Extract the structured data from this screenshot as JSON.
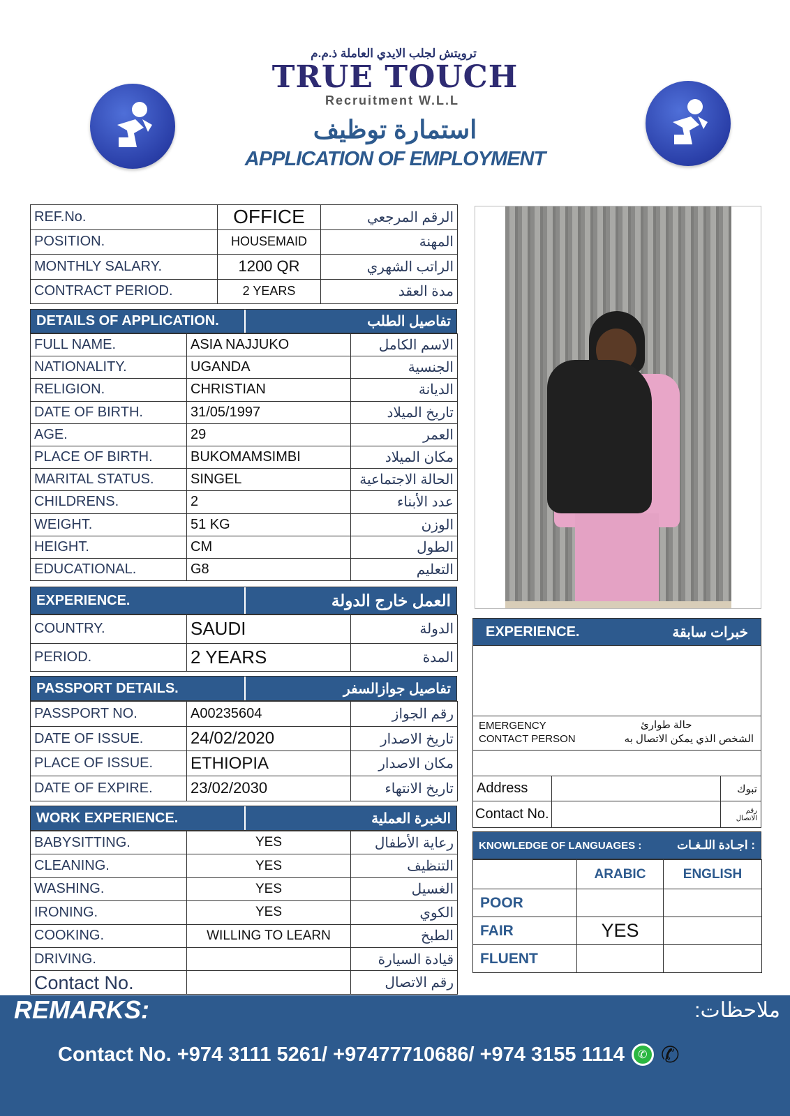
{
  "header": {
    "company_ar": "ترويتش لجلب الايدي العاملة ذ.م.م",
    "company": "TRUE TOUCH",
    "company_sub": "Recruitment W.L.L",
    "title_ar": "استمارة توظيف",
    "title": "APPLICATION OF EMPLOYMENT",
    "logo_icon": "recruitment-logo-icon"
  },
  "colors": {
    "accent": "#2d5a8e",
    "text": "#2a3a5c"
  },
  "top": [
    {
      "label": "REF.No.",
      "value": "OFFICE",
      "ar": "الرقم المرجعي"
    },
    {
      "label": "POSITION.",
      "value": "HOUSEMAID",
      "ar": "المهنة"
    },
    {
      "label": "MONTHLY SALARY.",
      "value": "1200 QR",
      "ar": "الراتب الشهري"
    },
    {
      "label": "CONTRACT PERIOD.",
      "value": "2 YEARS",
      "ar": "مدة العقد"
    }
  ],
  "details": {
    "title": "DETAILS OF APPLICATION.",
    "title_ar": "تفاصيل الطلب",
    "rows": [
      {
        "label": "FULL NAME.",
        "value": "ASIA  NAJJUKO",
        "ar": "الاسم الكامل"
      },
      {
        "label": "NATIONALITY.",
        "value": "UGANDA",
        "ar": "الجنسية"
      },
      {
        "label": "RELIGION.",
        "value": "CHRISTIAN",
        "ar": "الديانة"
      },
      {
        "label": "DATE OF BIRTH.",
        "value": "31/05/1997",
        "ar": "تاريخ الميلاد"
      },
      {
        "label": "AGE.",
        "value": "29",
        "ar": "العمر"
      },
      {
        "label": "PLACE OF BIRTH.",
        "value": "BUKOMAMSIMBI",
        "ar": "مكان الميلاد"
      },
      {
        "label": "MARITAL STATUS.",
        "value": "SINGEL",
        "ar": "الحالة الاجتماعية"
      },
      {
        "label": "CHILDRENS.",
        "value": "2",
        "ar": "عدد الأبناء"
      },
      {
        "label": "WEIGHT.",
        "value": "51 KG",
        "ar": "الوزن"
      },
      {
        "label": "HEIGHT.",
        "value": "CM",
        "ar": "الطول"
      },
      {
        "label": "EDUCATIONAL.",
        "value": "G8",
        "ar": "التعليم"
      }
    ]
  },
  "experience_abroad": {
    "title": "EXPERIENCE.",
    "title_ar": "العمل خارج الدولة",
    "rows": [
      {
        "label": "COUNTRY.",
        "value": "SAUDI",
        "ar": "الدولة"
      },
      {
        "label": "PERIOD.",
        "value": "2 YEARS",
        "ar": "المدة"
      }
    ]
  },
  "passport": {
    "title": "PASSPORT DETAILS.",
    "title_ar": "تفاصيل جوازالسفر",
    "rows": [
      {
        "label": "PASSPORT NO.",
        "value": "A00235604",
        "ar": "رقم الجواز"
      },
      {
        "label": "DATE OF ISSUE.",
        "value": "24/02/2020",
        "ar": "تاريخ الاصدار"
      },
      {
        "label": "PLACE OF ISSUE.",
        "value": "ETHIOPIA",
        "ar": "مكان الاصدار"
      },
      {
        "label": "DATE OF EXPIRE.",
        "value": "23/02/2030",
        "ar": "تاريخ الانتهاء"
      }
    ]
  },
  "work": {
    "title": "WORK EXPERIENCE.",
    "title_ar": "الخبرة العملية",
    "rows": [
      {
        "label": "BABYSITTING.",
        "value": "YES",
        "ar": "رعاية الأطفال"
      },
      {
        "label": "CLEANING.",
        "value": "YES",
        "ar": "التنظيف"
      },
      {
        "label": "WASHING.",
        "value": "YES",
        "ar": "الغسيل"
      },
      {
        "label": "IRONING.",
        "value": "YES",
        "ar": "الكوي"
      },
      {
        "label": "COOKING.",
        "value": "WILLING TO LEARN",
        "ar": "الطبخ"
      },
      {
        "label": "DRIVING.",
        "value": "",
        "ar": "قيادة السيارة"
      },
      {
        "label": "Contact No.",
        "value": "",
        "ar": "رقم الاتصال"
      }
    ]
  },
  "right": {
    "exp_title": "EXPERIENCE.",
    "exp_title_ar": "خبرات سابقة",
    "emergency": "EMERGENCY",
    "contact_person": "CONTACT PERSON",
    "emergency_ar": "حالة طوارئ",
    "contact_person_ar": "الشخص الذي يمكن الاتصال به",
    "address": "Address",
    "address_ar": "تبوك",
    "contact": "Contact No.",
    "contact_ar": "رقم الاتصال",
    "lang_title": "KNOWLEDGE OF LANGUAGES :",
    "lang_title_ar": "اجـادة اللـغـات :",
    "lang_cols": [
      "ARABIC",
      "ENGLISH"
    ],
    "lang_rows": [
      {
        "level": "POOR",
        "arabic": "",
        "english": ""
      },
      {
        "level": "FAIR",
        "arabic": "YES",
        "english": ""
      },
      {
        "level": "FLUENT",
        "arabic": "",
        "english": ""
      }
    ]
  },
  "footer": {
    "remarks": "REMARKS:",
    "remarks_ar": "ملاحظات:",
    "contact": "Contact No. +974 3111 5261/ +97477710686/  +974 3155 1114",
    "icons": [
      "whatsapp-icon",
      "phone-icon"
    ]
  }
}
